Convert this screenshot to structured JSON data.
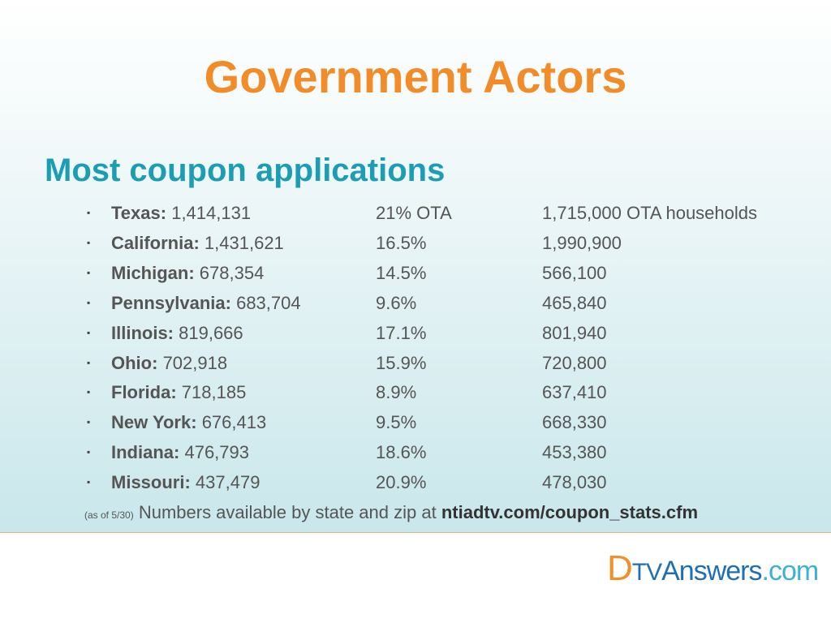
{
  "title": "Government Actors",
  "heading": "Most coupon applications",
  "rows": [
    {
      "state": "Texas:",
      "applications": "1,414,131",
      "share": "21% OTA",
      "households": "1,715,000 OTA households"
    },
    {
      "state": "California:",
      "applications": "1,431,621",
      "share": "16.5%",
      "households": "1,990,900"
    },
    {
      "state": "Michigan:",
      "applications": "678,354",
      "share": "14.5%",
      "households": "566,100"
    },
    {
      "state": "Pennsylvania:",
      "applications": "683,704",
      "share": "9.6%",
      "households": "465,840"
    },
    {
      "state": "Illinois:",
      "applications": "819,666",
      "share": "17.1%",
      "households": "801,940"
    },
    {
      "state": "Ohio:",
      "applications": "702,918",
      "share": "15.9%",
      "households": "720,800"
    },
    {
      "state": "Florida:",
      "applications": "718,185",
      "share": "8.9%",
      "households": "637,410"
    },
    {
      "state": "New York:",
      "applications": "676,413",
      "share": "9.5%",
      "households": "668,330"
    },
    {
      "state": "Indiana:",
      "applications": "476,793",
      "share": "18.6%",
      "households": "453,380"
    },
    {
      "state": "Missouri:",
      "applications": "437,479",
      "share": "20.9%",
      "households": "478,030"
    }
  ],
  "footnote": {
    "date": "(as of 5/30)",
    "text": "Numbers available by state and zip at",
    "link": "ntiadtv.com/coupon_stats.cfm"
  },
  "logo": {
    "d": "D",
    "tv": "TV",
    "answers": "Answers",
    "com": ".com"
  }
}
